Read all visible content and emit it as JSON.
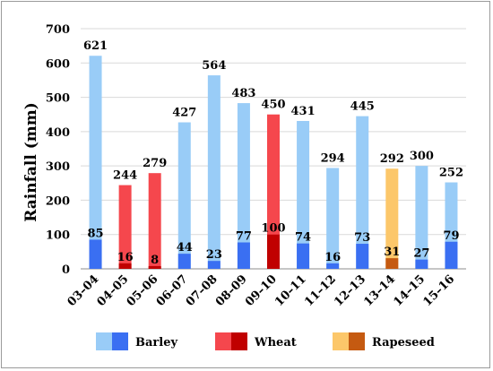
{
  "chart_data": {
    "type": "bar",
    "ylabel": "Rainfall (mm)",
    "xlabel": "",
    "ylim": [
      0,
      700
    ],
    "yticks": [
      0,
      100,
      200,
      300,
      400,
      500,
      600,
      700
    ],
    "grid": true,
    "categories": [
      "03–04",
      "04–05",
      "05–06",
      "06–07",
      "07–08",
      "08–09",
      "09–10",
      "10–11",
      "11–12",
      "12–13",
      "13–14",
      "14–15",
      "15–16"
    ],
    "crop": [
      "Barley",
      "Wheat",
      "Wheat",
      "Barley",
      "Barley",
      "Barley",
      "Wheat",
      "Barley",
      "Barley",
      "Barley",
      "Rapeseed",
      "Barley",
      "Barley"
    ],
    "totals": [
      621,
      244,
      279,
      427,
      564,
      483,
      450,
      431,
      294,
      445,
      292,
      300,
      252
    ],
    "lower": [
      85,
      16,
      8,
      44,
      23,
      77,
      100,
      74,
      16,
      73,
      31,
      27,
      79
    ],
    "legend_position": "bottom",
    "legend": [
      {
        "name": "Barley",
        "light": "#99ccf7",
        "dark": "#3a6ff2"
      },
      {
        "name": "Wheat",
        "light": "#f5474d",
        "dark": "#c00000"
      },
      {
        "name": "Rapeseed",
        "light": "#fcc76a",
        "dark": "#c55a11"
      }
    ]
  }
}
